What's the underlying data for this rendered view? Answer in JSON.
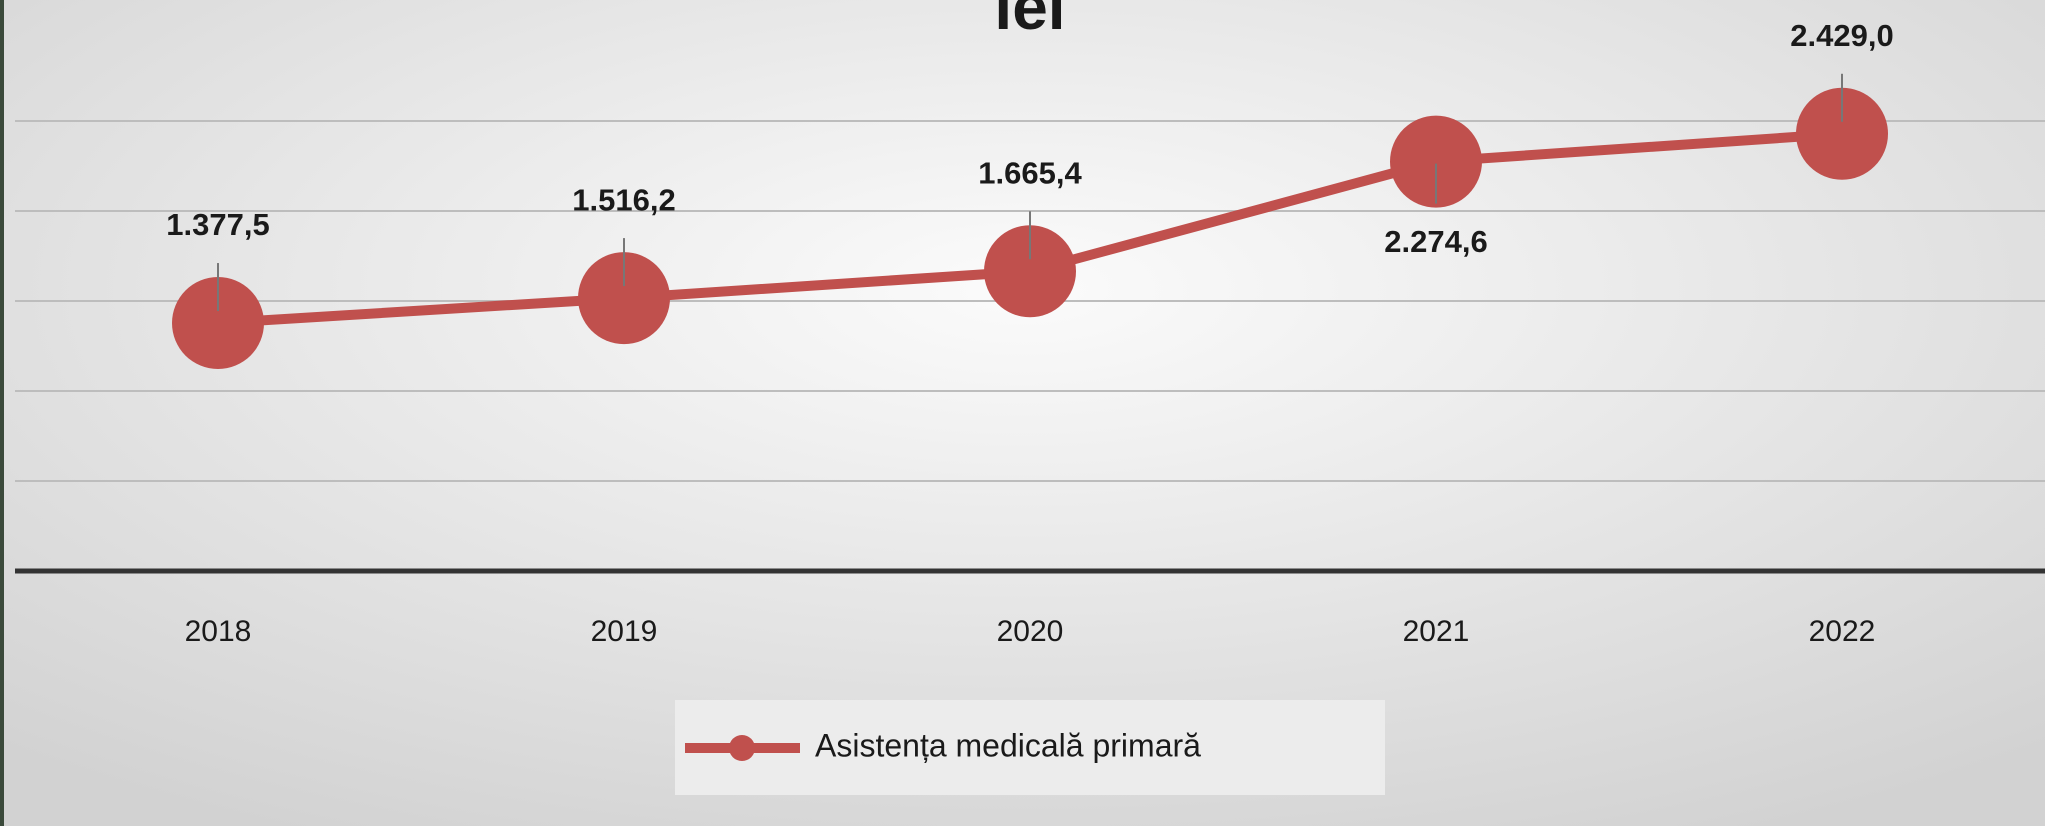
{
  "chart_data": {
    "type": "line",
    "title": "lei",
    "categories": [
      "2018",
      "2019",
      "2020",
      "2021",
      "2022"
    ],
    "series": [
      {
        "name": "Asistența medicală primară",
        "color": "#c0504d",
        "values": [
          1377.5,
          1516.2,
          1665.4,
          2274.6,
          2429.0
        ],
        "value_labels": [
          "1.377,5",
          "1.516,2",
          "1.665,4",
          "2.274,6",
          "2.429,0"
        ]
      }
    ],
    "ylim": [
      0,
      2500
    ],
    "yticks": [
      0,
      500,
      1000,
      1500,
      2000,
      2500
    ],
    "grid": true,
    "legend": "bottom"
  }
}
